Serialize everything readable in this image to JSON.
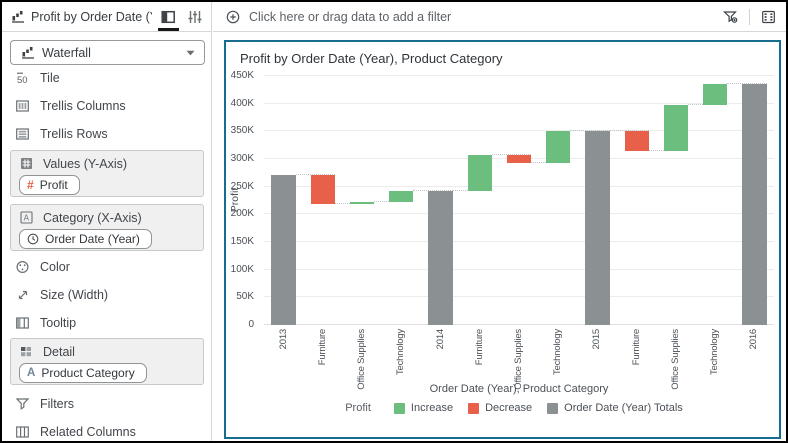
{
  "builder": {
    "title": "Profit by Order Date (Year), Pr...",
    "viz_type": "Waterfall",
    "rows": {
      "tile": "Tile",
      "trellis_columns": "Trellis Columns",
      "trellis_rows": "Trellis Rows",
      "color": "Color",
      "size": "Size (Width)",
      "tooltip": "Tooltip",
      "filters": "Filters",
      "related_columns": "Related Columns"
    },
    "dropzones": {
      "values": {
        "label": "Values (Y-Axis)",
        "pill": "Profit"
      },
      "category": {
        "label": "Category (X-Axis)",
        "pill": "Order Date (Year)"
      },
      "detail": {
        "label": "Detail",
        "pill": "Product Category"
      }
    }
  },
  "filter_bar": {
    "prompt": "Click here or drag data to add a filter"
  },
  "chart_data": {
    "type": "bar",
    "variant": "waterfall",
    "title": "Profit by Order Date (Year), Product Category",
    "xlabel": "Order Date (Year), Product Category",
    "ylabel": "Profit",
    "ylim": [
      0,
      450000
    ],
    "ytick_step": 50000,
    "ytick_labels": [
      "0",
      "50K",
      "100K",
      "150K",
      "200K",
      "250K",
      "300K",
      "350K",
      "400K",
      "450K"
    ],
    "grid": true,
    "legend_position": "bottom",
    "colors": {
      "increase": "#6bbe7e",
      "decrease": "#e8604a",
      "total": "#8b9093",
      "connector": "#c3c6c8",
      "panel_border": "#176d8f"
    },
    "legend": {
      "title": "Profit",
      "items": [
        {
          "label": "Increase",
          "key": "increase"
        },
        {
          "label": "Decrease",
          "key": "decrease"
        },
        {
          "label": "Order Date (Year) Totals",
          "key": "total"
        }
      ]
    },
    "bars": [
      {
        "category": "2013",
        "kind": "total",
        "start": 0,
        "end": 271000
      },
      {
        "category": "Furniture",
        "kind": "decrease",
        "start": 271000,
        "end": 218000
      },
      {
        "category": "Office Supplies",
        "kind": "increase",
        "start": 218000,
        "end": 222000
      },
      {
        "category": "Technology",
        "kind": "increase",
        "start": 222000,
        "end": 243000
      },
      {
        "category": "2014",
        "kind": "total",
        "start": 0,
        "end": 243000
      },
      {
        "category": "Furniture",
        "kind": "increase",
        "start": 243000,
        "end": 307000
      },
      {
        "category": "Office Supplies",
        "kind": "decrease",
        "start": 307000,
        "end": 293000
      },
      {
        "category": "Technology",
        "kind": "increase",
        "start": 293000,
        "end": 350000
      },
      {
        "category": "2015",
        "kind": "total",
        "start": 0,
        "end": 350000
      },
      {
        "category": "Furniture",
        "kind": "decrease",
        "start": 350000,
        "end": 315000
      },
      {
        "category": "Office Supplies",
        "kind": "increase",
        "start": 315000,
        "end": 397000
      },
      {
        "category": "Technology",
        "kind": "increase",
        "start": 397000,
        "end": 436000
      },
      {
        "category": "2016",
        "kind": "total",
        "start": 0,
        "end": 436000
      }
    ]
  }
}
